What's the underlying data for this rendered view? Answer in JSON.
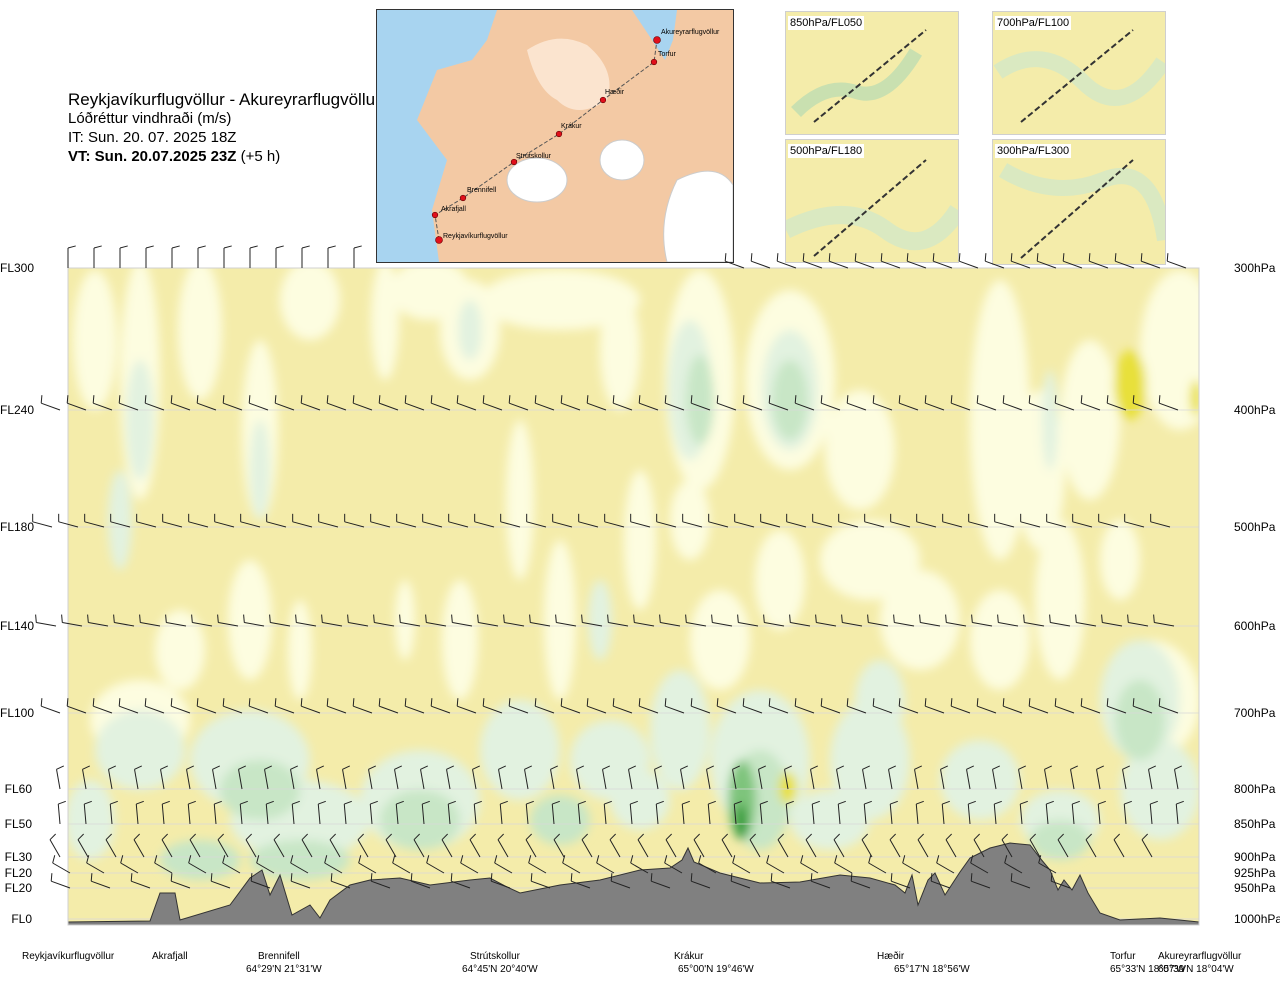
{
  "header": {
    "title": "Reykjavíkurflugvöllur - Akureyrarflugvöllur",
    "subtitle": "Lóðréttur vindhraði (m/s)",
    "init_time": "IT: Sun. 20. 07. 2025 18Z",
    "valid_prefix": "VT: Sun. 20.07.2025 23Z",
    "valid_suffix": "(+5 h)"
  },
  "route_map": {
    "waypoints": [
      {
        "name": "Akureyrarflugvöllur"
      },
      {
        "name": "Torfur"
      },
      {
        "name": "Hæðir"
      },
      {
        "name": "Krákur"
      },
      {
        "name": "Strútskollur"
      },
      {
        "name": "Brennifell"
      },
      {
        "name": "Akrafjall"
      },
      {
        "name": "Reykjavíkurflugvöllur"
      }
    ],
    "colors": {
      "sea": "#a8d4f0",
      "land": "#f3c9a4",
      "route": "#555555",
      "point": "#e0101c"
    }
  },
  "mini_maps": [
    {
      "label": "850hPa/FL050"
    },
    {
      "label": "700hPa/FL100"
    },
    {
      "label": "500hPa/FL180"
    },
    {
      "label": "300hPa/FL300"
    }
  ],
  "chart_data": {
    "type": "heatmap",
    "title": "Lóðréttur vindhraði (m/s)",
    "levels": [
      {
        "fl": "FL300",
        "hpa": "300hPa"
      },
      {
        "fl": "FL240",
        "hpa": "400hPa"
      },
      {
        "fl": "FL180",
        "hpa": "500hPa"
      },
      {
        "fl": "FL140",
        "hpa": "600hPa"
      },
      {
        "fl": "FL100",
        "hpa": "700hPa"
      },
      {
        "fl": "FL60",
        "hpa": "800hPa"
      },
      {
        "fl": "FL50",
        "hpa": "850hPa"
      },
      {
        "fl": "FL30",
        "hpa": "900hPa"
      },
      {
        "fl": "FL20",
        "hpa": "925hPa"
      },
      {
        "fl": "FL20",
        "hpa": "950hPa"
      },
      {
        "fl": "FL0",
        "hpa": "1000hPa"
      }
    ],
    "locations": [
      {
        "name": "Reykjavíkurflugvöllur",
        "coord": ""
      },
      {
        "name": "Akrafjall",
        "coord": ""
      },
      {
        "name": "Brennifell",
        "coord": "64°29'N 21°31'W"
      },
      {
        "name": "Strútskollur",
        "coord": "64°45'N 20°40'W"
      },
      {
        "name": "Krákur",
        "coord": "65°00'N 19°46'W"
      },
      {
        "name": "Hæðir",
        "coord": "65°17'N 18°56'W"
      },
      {
        "name": "Torfur",
        "coord": "65°33'N 18°07'W"
      },
      {
        "name": "Akureyrarflugvöllur",
        "coord": "65°39'N 18°04'W"
      }
    ],
    "colors": {
      "sink": "#f4ecaa",
      "weak_rise": "#fdfde0",
      "rise": "#e2f2e0",
      "rise2": "#c8e6c6",
      "rise3": "#7ec47c",
      "rise4": "#2f9a35",
      "strong_sink": "#e8e03a",
      "terrain": "#808080"
    },
    "grid": true
  }
}
